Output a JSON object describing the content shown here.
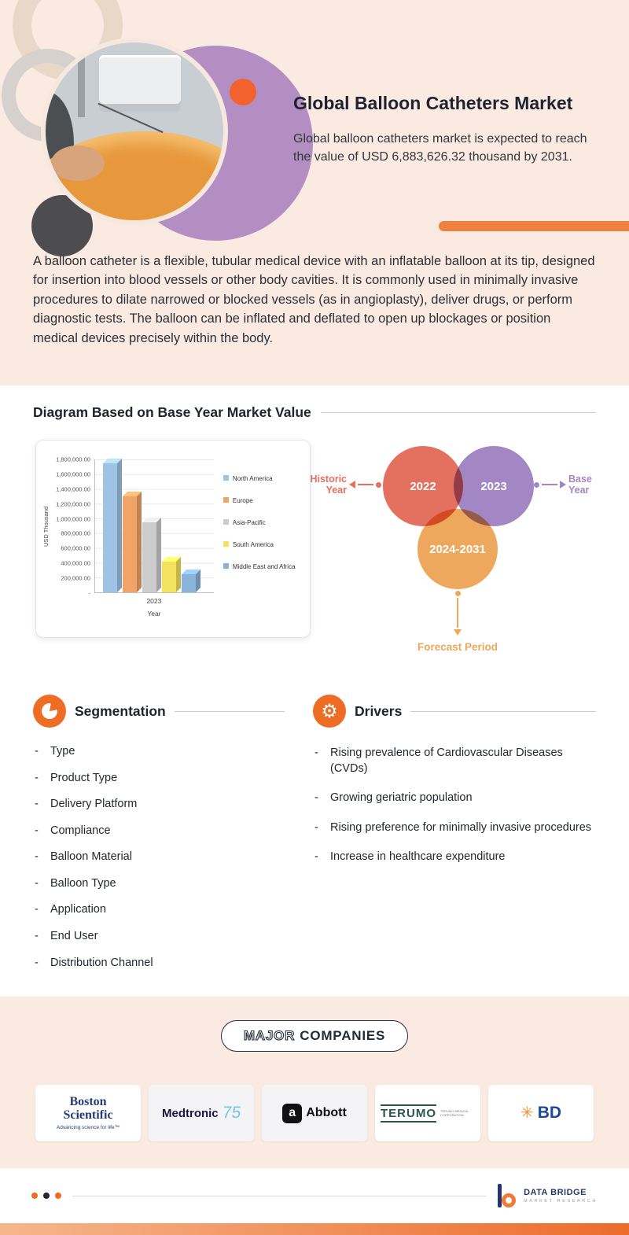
{
  "theme": {
    "accent": "#ee6c23",
    "navy": "#232838",
    "peach": "#fbeae1",
    "historic": "#e4705f",
    "base": "#a387c5",
    "forecast": "#eda85e",
    "grad_from": "#f6b68c",
    "grad_to": "#ec6c2b"
  },
  "header": {
    "title": "Global Balloon Catheters Market",
    "subtitle": "Global balloon catheters market is expected to reach the value of USD 6,883,626.32 thousand by 2031.",
    "description": "A balloon catheter is a flexible, tubular medical device with an inflatable balloon at its tip, designed for insertion into blood vessels or other body cavities. It is commonly used in minimally invasive procedures to dilate narrowed or blocked vessels (as in angioplasty), deliver drugs, or perform diagnostic tests. The balloon can be inflated and deflated to open up blockages or position medical devices precisely within the body."
  },
  "diagram_section": {
    "title": "Diagram Based on Base Year Market Value"
  },
  "chart_data": {
    "type": "bar",
    "categories": [
      "2023"
    ],
    "xlabel": "Year",
    "ylabel": "USD Thousand",
    "ymax": 1800000,
    "yticks": [
      "1,800,000.00",
      "1,600,000.00",
      "1,400,000.00",
      "1,200,000.00",
      "1,000,000.00",
      "800,000.00",
      "600,000.00",
      "400,000.00",
      "200,000.00",
      "-"
    ],
    "series": [
      {
        "name": "North America",
        "values": [
          1750000
        ],
        "color": "#9fc3e4"
      },
      {
        "name": "Europe",
        "values": [
          1300000
        ],
        "color": "#f0a468"
      },
      {
        "name": "Asia-Pacific",
        "values": [
          950000
        ],
        "color": "#cccccc"
      },
      {
        "name": "South America",
        "values": [
          420000
        ],
        "color": "#f2e25e"
      },
      {
        "name": "Middle East and Africa",
        "values": [
          250000
        ],
        "color": "#88b4dc"
      }
    ],
    "legend_position": "right",
    "grid": true
  },
  "venn": {
    "historic_label": "Historic Year",
    "historic_value": "2022",
    "base_label": "Base Year",
    "base_value": "2023",
    "forecast_label": "Forecast Period",
    "forecast_value": "2024-2031"
  },
  "segmentation": {
    "title": "Segmentation",
    "items": [
      "Type",
      "Product Type",
      "Delivery Platform",
      "Compliance",
      "Balloon Material",
      "Balloon Type",
      "Application",
      "End User",
      "Distribution Channel"
    ]
  },
  "drivers": {
    "title": "Drivers",
    "items": [
      "Rising prevalence of Cardiovascular Diseases (CVDs)",
      "Growing geriatric population",
      "Rising preference for minimally invasive procedures",
      "Increase in healthcare expenditure"
    ]
  },
  "companies": {
    "title_outline": "MAJOR",
    "title_solid": "COMPANIES",
    "boston": {
      "line1": "Boston",
      "line2": "Scientific",
      "tagline": "Advancing science for life™"
    },
    "medtronic": {
      "name": "Medtronic",
      "number": "75"
    },
    "abbott": {
      "name": "Abbott",
      "icon_letter": "a"
    },
    "terumo": {
      "name": "TERUMO",
      "sub": "TERUMO MEDICAL CORPORATION"
    },
    "bd": {
      "name": "BD",
      "icon_glyph": "✳"
    }
  },
  "footer": {
    "brand": "DATA BRIDGE",
    "brand_sub": "MARKET RESEARCH"
  }
}
